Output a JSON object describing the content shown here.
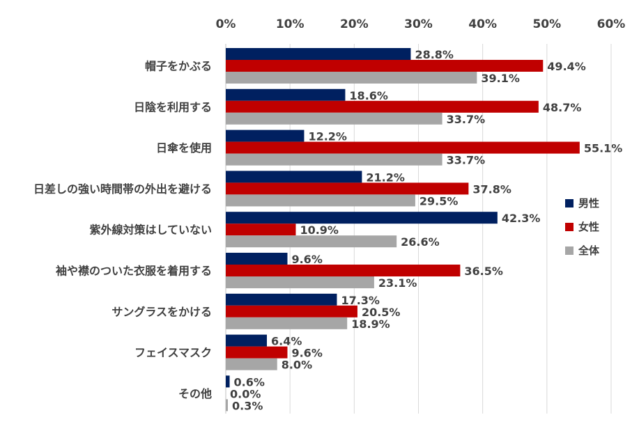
{
  "chart_data": {
    "type": "bar",
    "orientation": "horizontal",
    "categories": [
      "帽子をかぶる",
      "日陰を利用する",
      "日傘を使用",
      "日差しの強い時間帯の外出を避ける",
      "紫外線対策はしていない",
      "袖や襟のついた衣服を着用する",
      "サングラスをかける",
      "フェイスマスク",
      "その他"
    ],
    "series": [
      {
        "name": "男性",
        "color": "#002060",
        "values": [
          28.8,
          18.6,
          12.2,
          21.2,
          42.3,
          9.6,
          17.3,
          6.4,
          0.6
        ],
        "labels": [
          "28.8%",
          "18.6%",
          "12.2%",
          "21.2%",
          "42.3%",
          "9.6%",
          "17.3%",
          "6.4%",
          "0.6%"
        ]
      },
      {
        "name": "女性",
        "color": "#c00000",
        "values": [
          49.4,
          48.7,
          55.1,
          37.8,
          10.9,
          36.5,
          20.5,
          9.6,
          0.0
        ],
        "labels": [
          "49.4%",
          "48.7%",
          "55.1%",
          "37.8%",
          "10.9%",
          "36.5%",
          "20.5%",
          "9.6%",
          "0.0%"
        ]
      },
      {
        "name": "全体",
        "color": "#a6a6a6",
        "values": [
          39.1,
          33.7,
          33.7,
          29.5,
          26.6,
          23.1,
          18.9,
          8.0,
          0.3
        ],
        "labels": [
          "39.1%",
          "33.7%",
          "33.7%",
          "29.5%",
          "26.6%",
          "23.1%",
          "18.9%",
          "8.0%",
          "0.3%"
        ]
      }
    ],
    "x_ticks": [
      "0%",
      "10%",
      "20%",
      "30%",
      "40%",
      "50%",
      "60%"
    ],
    "xlim": [
      0,
      60
    ],
    "axis_position": "top",
    "grid": true,
    "legend_position": "right",
    "title": "",
    "xlabel": "",
    "ylabel": ""
  }
}
